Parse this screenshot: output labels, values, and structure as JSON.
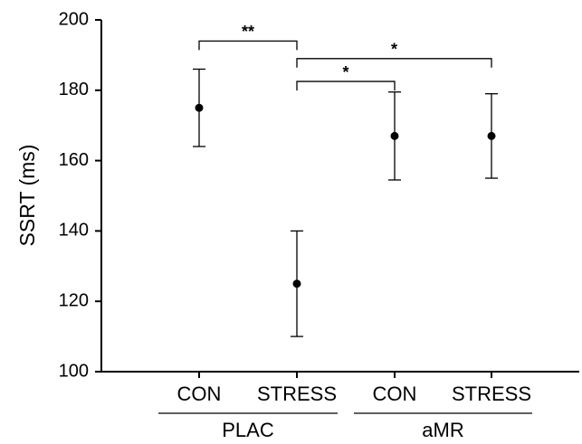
{
  "chart_data": {
    "type": "errorbar",
    "y_label": "SSRT (ms)",
    "categories": [
      "CON",
      "STRESS",
      "CON",
      "STRESS"
    ],
    "groups": [
      {
        "label": "PLAC",
        "span": 2
      },
      {
        "label": "aMR",
        "span": 2
      }
    ],
    "series": [
      {
        "name": "SSRT",
        "color": "#000000",
        "values": [
          175,
          125,
          167,
          167
        ],
        "errors": [
          11,
          15,
          12.5,
          12
        ]
      }
    ],
    "ylim": [
      100,
      200
    ],
    "yticks": [
      100,
      120,
      140,
      160,
      180,
      200
    ],
    "brackets": [
      {
        "from": 0,
        "to": 1,
        "label": "**",
        "y": 194
      },
      {
        "from": 1,
        "to": 3,
        "label": "*",
        "y": 189
      },
      {
        "from": 1,
        "to": 2,
        "label": "*",
        "y": 182.5
      }
    ]
  }
}
